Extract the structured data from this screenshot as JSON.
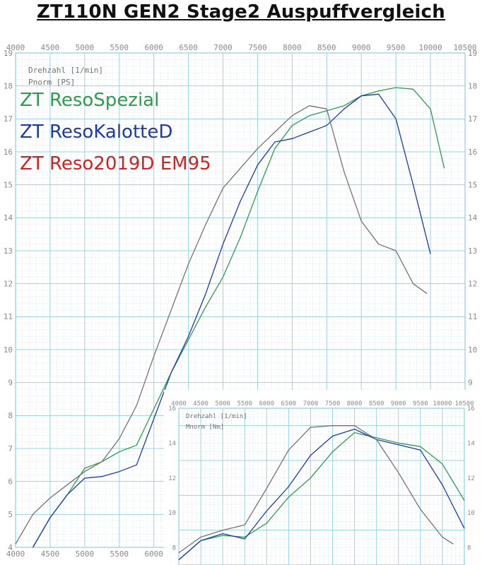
{
  "title": "ZT110N GEN2 Stage2 Auspuffvergleich",
  "colors": {
    "grid": "#8fcfe6",
    "tick": "#8a8a8a",
    "green": "#2e9b4e",
    "blue": "#1c3aa6",
    "gray": "#7c6e6e"
  },
  "chart_data": [
    {
      "type": "line",
      "name": "power",
      "xlabel": "Drehzahl [1/min]",
      "ylabel": "Pnorm [PS]",
      "xlim": [
        4000,
        10500
      ],
      "ylim": [
        4,
        19
      ],
      "xticks": [
        "4000",
        "4500",
        "5000",
        "5500",
        "6000",
        "6500",
        "7000",
        "7500",
        "8000",
        "8500",
        "9000",
        "9500",
        "10000",
        "10500"
      ],
      "yticks": [
        "4",
        "5",
        "6",
        "7",
        "8",
        "9",
        "10",
        "11",
        "12",
        "13",
        "14",
        "15",
        "16",
        "17",
        "18",
        "19"
      ],
      "legend": [
        {
          "label": "ZT ResoSpezial",
          "color": "#2e9b4e"
        },
        {
          "label": "ZT ResoKalotteD",
          "color": "#1c3aa6"
        },
        {
          "label": "ZT Reso2019D EM95",
          "color": "#d42020"
        }
      ],
      "series": [
        {
          "name": "ZT ResoSpezial",
          "color": "#2e9b4e",
          "points": [
            [
              4250,
              4.0
            ],
            [
              4500,
              4.9
            ],
            [
              4750,
              5.6
            ],
            [
              5000,
              6.4
            ],
            [
              5250,
              6.6
            ],
            [
              5500,
              6.9
            ],
            [
              5750,
              7.1
            ],
            [
              6000,
              8.2
            ],
            [
              6250,
              9.3
            ],
            [
              6500,
              10.3
            ],
            [
              6750,
              11.3
            ],
            [
              7000,
              12.2
            ],
            [
              7250,
              13.4
            ],
            [
              7500,
              14.8
            ],
            [
              7750,
              16.1
            ],
            [
              8000,
              16.8
            ],
            [
              8250,
              17.1
            ],
            [
              8500,
              17.25
            ],
            [
              8750,
              17.4
            ],
            [
              9000,
              17.7
            ],
            [
              9250,
              17.85
            ],
            [
              9500,
              17.95
            ],
            [
              9750,
              17.9
            ],
            [
              10000,
              17.3
            ],
            [
              10200,
              15.5
            ]
          ]
        },
        {
          "name": "ZT ResoKalotteD",
          "color": "#1c3aa6",
          "points": [
            [
              4250,
              4.0
            ],
            [
              4500,
              4.9
            ],
            [
              4750,
              5.6
            ],
            [
              5000,
              6.1
            ],
            [
              5250,
              6.15
            ],
            [
              5500,
              6.3
            ],
            [
              5750,
              6.5
            ],
            [
              6000,
              7.9
            ],
            [
              6250,
              9.3
            ],
            [
              6500,
              10.4
            ],
            [
              6750,
              11.7
            ],
            [
              7000,
              13.2
            ],
            [
              7250,
              14.5
            ],
            [
              7500,
              15.6
            ],
            [
              7750,
              16.3
            ],
            [
              8000,
              16.4
            ],
            [
              8250,
              16.6
            ],
            [
              8500,
              16.8
            ],
            [
              8750,
              17.3
            ],
            [
              9000,
              17.7
            ],
            [
              9250,
              17.75
            ],
            [
              9500,
              17.0
            ],
            [
              9750,
              15.0
            ],
            [
              10000,
              12.9
            ]
          ]
        },
        {
          "name": "ZT Reso2019D EM95",
          "color": "#7c6e6e",
          "points": [
            [
              4000,
              4.1
            ],
            [
              4250,
              5.0
            ],
            [
              4500,
              5.5
            ],
            [
              4750,
              5.9
            ],
            [
              5000,
              6.3
            ],
            [
              5250,
              6.6
            ],
            [
              5500,
              7.3
            ],
            [
              5750,
              8.3
            ],
            [
              6000,
              9.8
            ],
            [
              6250,
              11.2
            ],
            [
              6500,
              12.6
            ],
            [
              6750,
              13.8
            ],
            [
              7000,
              14.9
            ],
            [
              7250,
              15.5
            ],
            [
              7500,
              16.1
            ],
            [
              7750,
              16.6
            ],
            [
              8000,
              17.1
            ],
            [
              8250,
              17.4
            ],
            [
              8500,
              17.3
            ],
            [
              8750,
              15.4
            ],
            [
              9000,
              13.9
            ],
            [
              9250,
              13.2
            ],
            [
              9500,
              13.0
            ],
            [
              9750,
              12.0
            ],
            [
              9950,
              11.7
            ]
          ]
        }
      ]
    },
    {
      "type": "line",
      "name": "torque",
      "xlabel": "Drehzahl [1/min]",
      "ylabel": "Mnorm [Nm]",
      "xlim": [
        4000,
        10500
      ],
      "ylim": [
        7,
        16
      ],
      "xticks": [
        "4000",
        "4500",
        "5000",
        "5500",
        "6000",
        "6500",
        "7000",
        "7500",
        "8000",
        "8500",
        "9000",
        "9500",
        "10000",
        "10500"
      ],
      "yticks": [
        "8",
        "10",
        "12",
        "14",
        "16"
      ],
      "series": [
        {
          "name": "ZT ResoSpezial",
          "color": "#2e9b4e",
          "points": [
            [
              4000,
              7.3
            ],
            [
              4500,
              8.4
            ],
            [
              5000,
              8.7
            ],
            [
              5500,
              8.6
            ],
            [
              6000,
              9.4
            ],
            [
              6500,
              10.9
            ],
            [
              7000,
              12.0
            ],
            [
              7500,
              13.5
            ],
            [
              8000,
              14.6
            ],
            [
              8500,
              14.3
            ],
            [
              9000,
              14.0
            ],
            [
              9500,
              13.8
            ],
            [
              10000,
              12.8
            ],
            [
              10500,
              10.7
            ]
          ]
        },
        {
          "name": "ZT ResoKalotteD",
          "color": "#1c3aa6",
          "points": [
            [
              4000,
              7.3
            ],
            [
              4500,
              8.4
            ],
            [
              5000,
              8.8
            ],
            [
              5500,
              8.5
            ],
            [
              6000,
              10.1
            ],
            [
              6500,
              11.5
            ],
            [
              7000,
              13.3
            ],
            [
              7500,
              14.4
            ],
            [
              8000,
              14.8
            ],
            [
              8500,
              14.2
            ],
            [
              9000,
              13.9
            ],
            [
              9500,
              13.6
            ],
            [
              10000,
              11.6
            ],
            [
              10500,
              9.1
            ]
          ]
        },
        {
          "name": "ZT Reso2019D EM95",
          "color": "#7c6e6e",
          "points": [
            [
              4000,
              7.7
            ],
            [
              4500,
              8.6
            ],
            [
              5000,
              9.0
            ],
            [
              5500,
              9.3
            ],
            [
              6000,
              11.4
            ],
            [
              6500,
              13.6
            ],
            [
              7000,
              14.9
            ],
            [
              7500,
              15.0
            ],
            [
              8000,
              15.0
            ],
            [
              8500,
              14.2
            ],
            [
              9000,
              12.3
            ],
            [
              9500,
              10.2
            ],
            [
              10000,
              8.6
            ],
            [
              10250,
              8.2
            ]
          ]
        }
      ]
    }
  ]
}
